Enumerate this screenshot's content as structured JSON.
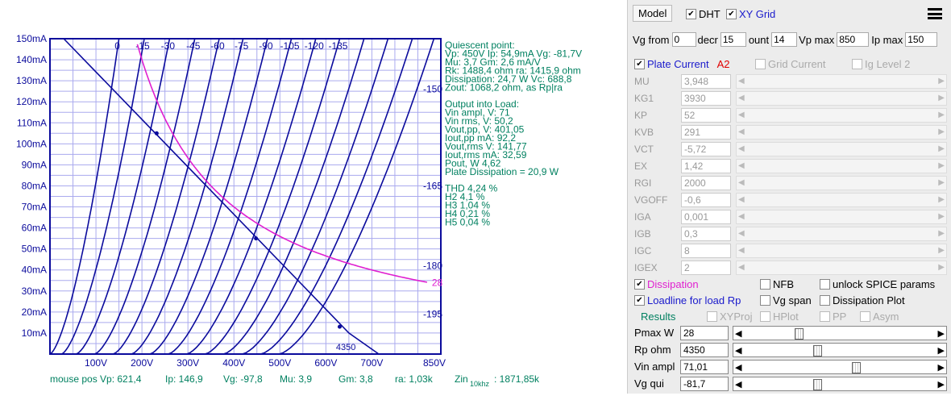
{
  "chart_data": {
    "type": "line",
    "x_ticks": [
      "100V",
      "200V",
      "300V",
      "400V",
      "500V",
      "600V",
      "700V",
      "850V"
    ],
    "y_ticks": [
      "10mA",
      "20mA",
      "30mA",
      "40mA",
      "50mA",
      "60mA",
      "70mA",
      "80mA",
      "90mA",
      "100mA",
      "110mA",
      "120mA",
      "130mA",
      "140mA",
      "150mA"
    ],
    "xlim": [
      0,
      850
    ],
    "ylim": [
      0,
      150
    ],
    "grid": true,
    "grid_labels_top": [
      "0",
      "-15",
      "-30",
      "-45",
      "-60",
      "-75",
      "-90",
      "-105",
      "-120",
      "-135"
    ],
    "grid_labels_right": [
      "-150",
      "-165",
      "-180",
      "-195"
    ],
    "vg_values": [
      0,
      -15,
      -30,
      -45,
      -60,
      -75,
      -90,
      -105,
      -120,
      -135,
      -150,
      -165,
      -180,
      -195
    ],
    "curve_start_vp": [
      0,
      25,
      57,
      97,
      137,
      177,
      217,
      257,
      297,
      337,
      377,
      418,
      458,
      498
    ],
    "curve_top_vp": [
      150,
      205,
      260,
      315,
      368,
      420,
      473,
      525,
      578,
      630,
      683,
      735,
      788,
      835
    ],
    "pmax_w": 28,
    "dissipation_label": "28",
    "loadline": {
      "points": [
        [
          30,
          150
        ],
        [
          650,
          10
        ],
        [
          715,
          0
        ]
      ],
      "label": "4350"
    },
    "markers": [
      [
        232,
        105
      ],
      [
        448,
        55
      ],
      [
        630,
        13
      ]
    ],
    "info_lines": [
      "Quiescent point:",
      "Vp: 450V  Ip: 54,9mA  Vg: -81,7V",
      "Mu: 3,7 Gm: 2,6 mA/V",
      "Rk: 1488,4 ohm ra: 1415,9 ohm",
      "Dissipation: 24,7 W Vc: 688,8",
      "Zout: 1068,2 ohm, as Rp|ra",
      "",
      "Output into Load:",
      "Vin ampl, V: 71",
      "Vin rms,  V: 50,2",
      "Vout,pp,   V: 401,05",
      "Iout,pp   mA: 92,2",
      "Vout,rms   V: 141,77",
      "Iout,rms  mA: 32,59",
      "Pout, W      4,62",
      "Plate Dissipation = 20,9 W",
      "",
      "THD 4,24 %",
      "   H2 4,1 %",
      "   H3 1,04 %",
      "   H4 0,21 %",
      "   H5 0,04 %"
    ],
    "status": {
      "vp": "mouse pos Vp: 621,4",
      "ip": "Ip: 146,9",
      "vg": "Vg: -97,8",
      "mu": "Mu: 3,9",
      "gm": "Gm: 3,8",
      "ra": "ra: 1,03k",
      "zin": "Zin",
      "zin_sub": "10khz",
      "zin_val": ": 1871,85k"
    },
    "colors": {
      "curves": "#0b0b9c",
      "grid": "#aaaaee",
      "dissipation": "#e020d0",
      "text": "#008060"
    }
  },
  "toolbar": {
    "model_label": "Model",
    "dht_label": "DHT",
    "xy_grid_label": "XY Grid",
    "dht": true,
    "xy_grid": true,
    "menu_icon": "hamburger-icon"
  },
  "vg_from": {
    "label": "Vg from",
    "value": "0"
  },
  "decr": {
    "label": "decr",
    "value": "15"
  },
  "count": {
    "label": "ount",
    "value": "14"
  },
  "vp_max": {
    "label": "Vp max",
    "value": "850"
  },
  "ip_max": {
    "label": "Ip max",
    "value": "150"
  },
  "plate_current": {
    "label": "Plate Current",
    "tag": "A2",
    "checked": true
  },
  "grid_current": {
    "label": "Grid Current"
  },
  "ig_level": {
    "label": "Ig Level 2"
  },
  "params": [
    {
      "name": "MU",
      "value": "3,948"
    },
    {
      "name": "KG1",
      "value": "3930"
    },
    {
      "name": "KP",
      "value": "52"
    },
    {
      "name": "KVB",
      "value": "291"
    },
    {
      "name": "VCT",
      "value": "-5,72"
    },
    {
      "name": "EX",
      "value": "1,42"
    },
    {
      "name": "RGI",
      "value": "2000"
    },
    {
      "name": "VGOFF",
      "value": "-0,6"
    },
    {
      "name": "IGA",
      "value": "0,001"
    },
    {
      "name": "IGB",
      "value": "0,3"
    },
    {
      "name": "IGC",
      "value": "8"
    },
    {
      "name": "IGEX",
      "value": "2"
    }
  ],
  "options": {
    "dissipation": "Dissipation",
    "nfb": "NFB",
    "unlock": "unlock SPICE params",
    "loadline": "Loadline for load Rp",
    "vg_span": "Vg span",
    "diss_plot": "Dissipation Plot",
    "results": "Results",
    "xyproj": "XYProj",
    "hplot": "HPlot",
    "pp": "PP",
    "asym": "Asym"
  },
  "sliders": [
    {
      "label": "Pmax W",
      "value": "28",
      "pos": 0.27
    },
    {
      "label": "Rp ohm",
      "value": "4350",
      "pos": 0.37
    },
    {
      "label": "Vin ampl",
      "value": "71,01",
      "pos": 0.58
    },
    {
      "label": "Vg qui",
      "value": "-81,7",
      "pos": 0.37
    }
  ]
}
